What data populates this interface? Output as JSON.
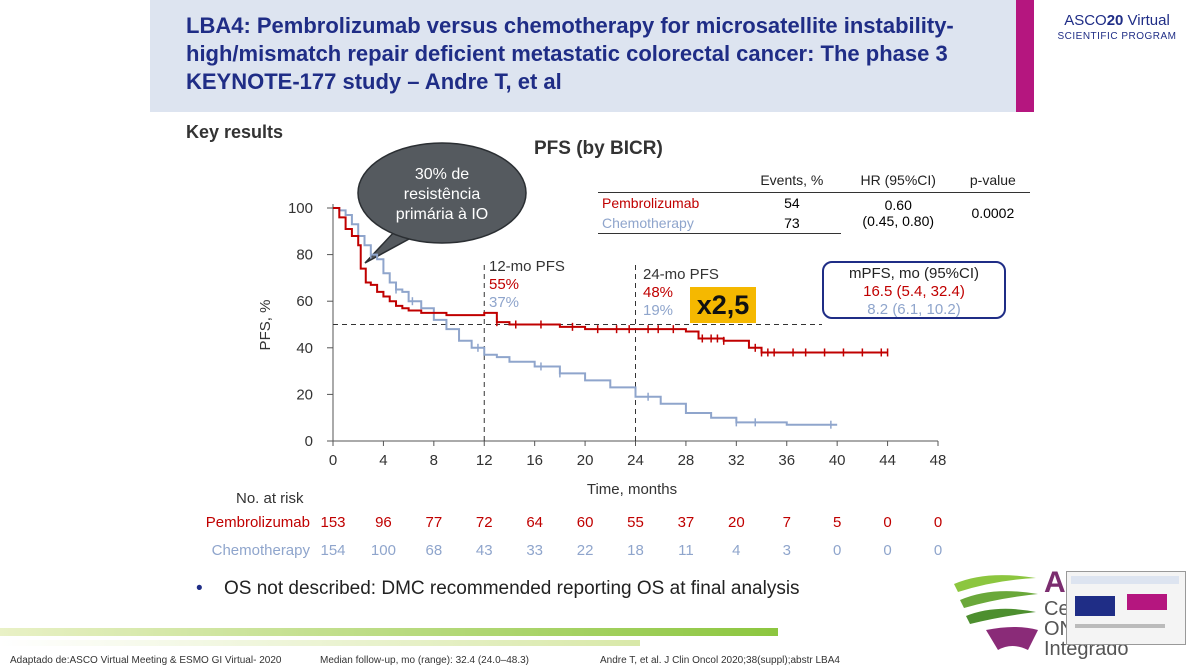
{
  "header": {
    "title": "LBA4: Pembrolizumab versus chemotherapy for microsatellite instability-high/mismatch repair deficient metastatic colorectal cancer: The phase 3 KEYNOTE-177 study – Andre T, et al",
    "logo_asco": "ASCO",
    "logo_num": "20",
    "logo_virtual": " Virtual",
    "logo_sub": "SCIENTIFIC PROGRAM"
  },
  "section_title": "Key results",
  "chart_title": "PFS (by BICR)",
  "stats_table": {
    "headers": [
      "",
      "Events, %",
      "HR (95%CI)",
      "p-value"
    ],
    "pembro": {
      "name": "Pembrolizumab",
      "events": "54"
    },
    "chemo": {
      "name": "Chemotherapy",
      "events": "73"
    },
    "hr": "0.60",
    "hr_ci": "(0.45, 0.80)",
    "p_value": "0.0002"
  },
  "bubble": {
    "l1": "30% de",
    "l2": "resistência",
    "l3": "primária à IO"
  },
  "pfs12": {
    "label": "12-mo PFS",
    "pembro": "55%",
    "chemo": "37%"
  },
  "pfs24": {
    "label": "24-mo PFS",
    "pembro": "48%",
    "chemo": "19%"
  },
  "mpfs": {
    "label": "mPFS, mo (95%CI)",
    "pembro": "16.5 (5.4, 32.4)",
    "chemo": "8.2 (6.1, 10.2)"
  },
  "ratio_badge": "x2,5",
  "risk_table": {
    "label": "No. at risk",
    "pembro_name": "Pembrolizumab",
    "chemo_name": "Chemotherapy",
    "pembro": [
      "153",
      "96",
      "77",
      "72",
      "64",
      "60",
      "55",
      "37",
      "20",
      "7",
      "5",
      "0",
      "0"
    ],
    "chemo": [
      "154",
      "100",
      "68",
      "43",
      "33",
      "22",
      "18",
      "11",
      "4",
      "3",
      "0",
      "0",
      "0"
    ]
  },
  "bullet_text": "OS not described: DMC recommended reporting OS at final analysis",
  "footer": {
    "left": "Adaptado de:ASCO Virtual Meeting & ESMO GI Virtual-  2020",
    "mid": "Median follow-up, mo (range): 32.4 (24.0–48.3)",
    "right": "Andre T, et al. J Clin Oncol 2020;38(suppl);abstr LBA4"
  },
  "cop_logo": {
    "l1": "A",
    "l2": "Ce",
    "l3": "ON",
    "l4": "Integrado"
  },
  "colors": {
    "pembro": "#c00000",
    "chemo": "#8fa5cc",
    "title": "#1f2d86",
    "accent": "#b5167f",
    "badge": "#f5b800"
  },
  "chart_data": {
    "type": "line",
    "title": "PFS (by BICR)",
    "xlabel": "Time, months",
    "ylabel": "PFS, %",
    "xlim": [
      0,
      48
    ],
    "ylim": [
      0,
      100
    ],
    "xticks": [
      0,
      4,
      8,
      12,
      16,
      20,
      24,
      28,
      32,
      36,
      40,
      44,
      48
    ],
    "yticks": [
      0,
      20,
      40,
      60,
      80,
      100
    ],
    "median_line_y": 50,
    "vlines_x": [
      12,
      24
    ],
    "series": [
      {
        "name": "Pembrolizumab",
        "color": "#c00000",
        "x": [
          0,
          0.5,
          1,
          1.5,
          2,
          2.2,
          2.6,
          3,
          3.5,
          4,
          4.5,
          5,
          5.5,
          6,
          7,
          8,
          9,
          10,
          11,
          12,
          13,
          14,
          16,
          18,
          20,
          22,
          24,
          26,
          28,
          29,
          30,
          31,
          32,
          33,
          34,
          36,
          38,
          40,
          44
        ],
        "y": [
          100,
          96,
          91,
          88,
          84,
          74,
          68,
          67,
          64,
          62,
          60,
          58,
          57,
          56,
          55,
          55,
          54,
          54,
          54,
          55,
          51,
          50,
          50,
          49,
          48,
          48,
          48,
          48,
          47,
          44,
          44,
          43,
          43,
          40,
          38,
          38,
          38,
          38,
          38
        ],
        "censors": [
          13,
          14.5,
          16.5,
          19,
          21,
          22.5,
          23.5,
          25,
          25.8,
          27,
          29.3,
          30,
          30.5,
          31,
          33.5,
          34,
          34.5,
          35,
          36.5,
          37.5,
          39,
          40.5,
          42,
          43.5,
          44
        ]
      },
      {
        "name": "Chemotherapy",
        "color": "#8fa5cc",
        "x": [
          0,
          0.5,
          1,
          1.5,
          2,
          2.5,
          3,
          3.5,
          4,
          4.5,
          5,
          5.5,
          6,
          7,
          8,
          9,
          10,
          11,
          12,
          13,
          14,
          16,
          18,
          20,
          22,
          24,
          26,
          28,
          30,
          32,
          36,
          38,
          40
        ],
        "y": [
          100,
          99,
          97,
          93,
          88,
          84,
          80,
          78,
          72,
          68,
          65,
          64,
          60,
          57,
          52,
          48,
          43,
          40,
          37,
          36,
          34,
          32,
          29,
          26,
          23,
          19,
          16,
          12,
          10,
          8,
          7,
          7,
          7
        ],
        "censors": [
          3,
          5,
          6.3,
          11.5,
          16.5,
          18,
          25,
          32,
          33.5,
          39.5
        ]
      }
    ]
  }
}
